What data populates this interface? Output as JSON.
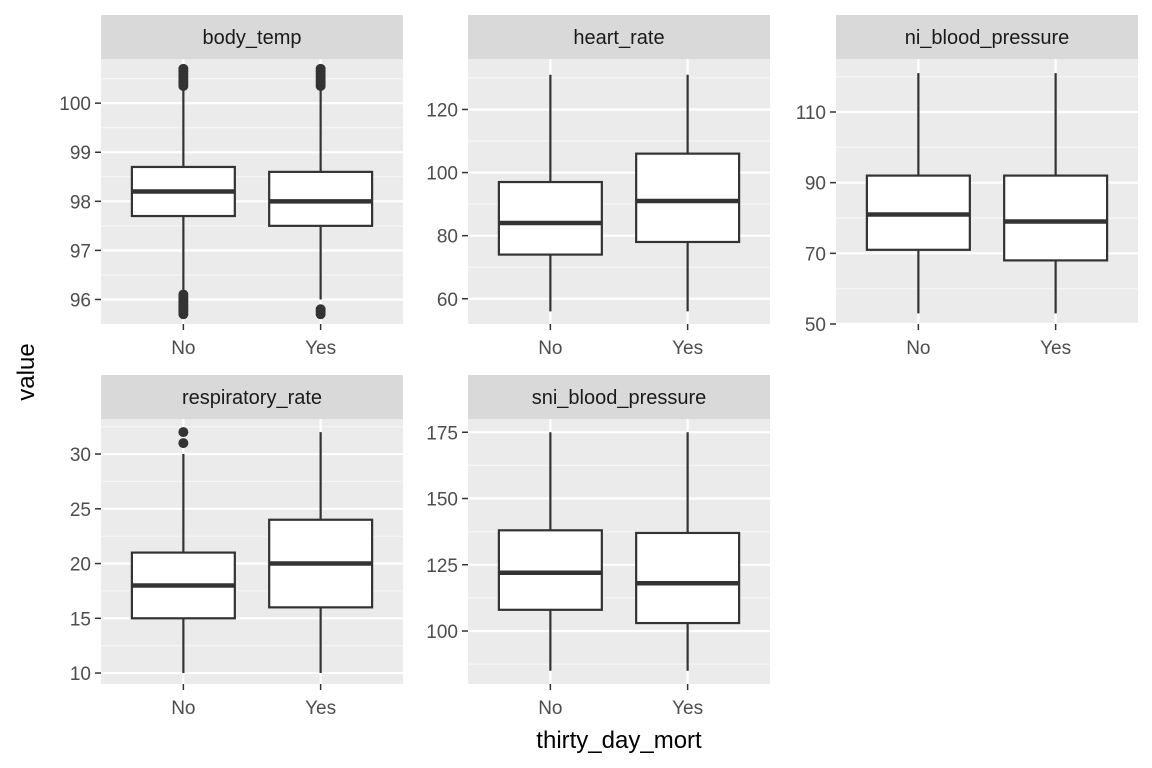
{
  "chart_data": {
    "type": "boxplot",
    "xlabel": "thirty_day_mort",
    "ylabel": "value",
    "categories": [
      "No",
      "Yes"
    ],
    "facets": [
      {
        "name": "body_temp",
        "ylim": [
          95.5,
          100.9
        ],
        "yticks": [
          96,
          97,
          98,
          99,
          100
        ],
        "boxes": [
          {
            "category": "No",
            "whisker_low": 96.2,
            "q1": 97.7,
            "median": 98.2,
            "q3": 98.7,
            "whisker_high": 100.3,
            "outliers": [
              95.7,
              95.75,
              95.8,
              95.85,
              95.9,
              95.95,
              96.0,
              96.05,
              96.1,
              100.35,
              100.4,
              100.45,
              100.5,
              100.55,
              100.6,
              100.65,
              100.7
            ]
          },
          {
            "category": "Yes",
            "whisker_low": 96.0,
            "q1": 97.5,
            "median": 98.0,
            "q3": 98.6,
            "whisker_high": 100.3,
            "outliers": [
              95.7,
              95.75,
              95.8,
              100.35,
              100.4,
              100.45,
              100.5,
              100.55,
              100.6,
              100.65,
              100.7
            ]
          }
        ]
      },
      {
        "name": "heart_rate",
        "ylim": [
          52,
          136
        ],
        "yticks": [
          60,
          80,
          100,
          120
        ],
        "boxes": [
          {
            "category": "No",
            "whisker_low": 56,
            "q1": 74,
            "median": 84,
            "q3": 97,
            "whisker_high": 131,
            "outliers": []
          },
          {
            "category": "Yes",
            "whisker_low": 56,
            "q1": 78,
            "median": 91,
            "q3": 106,
            "whisker_high": 131,
            "outliers": []
          }
        ]
      },
      {
        "name": "ni_blood_pressure",
        "ylim": [
          50,
          125
        ],
        "yticks": [
          50,
          70,
          90,
          110
        ],
        "boxes": [
          {
            "category": "No",
            "whisker_low": 53,
            "q1": 71,
            "median": 81,
            "q3": 92,
            "whisker_high": 121,
            "outliers": []
          },
          {
            "category": "Yes",
            "whisker_low": 53,
            "q1": 68,
            "median": 79,
            "q3": 92,
            "whisker_high": 121,
            "outliers": []
          }
        ]
      },
      {
        "name": "respiratory_rate",
        "ylim": [
          9,
          33.2
        ],
        "yticks": [
          10,
          15,
          20,
          25,
          30
        ],
        "boxes": [
          {
            "category": "No",
            "whisker_low": 10,
            "q1": 15,
            "median": 18,
            "q3": 21,
            "whisker_high": 30,
            "outliers": [
              31,
              32
            ]
          },
          {
            "category": "Yes",
            "whisker_low": 10,
            "q1": 16,
            "median": 20,
            "q3": 24,
            "whisker_high": 32,
            "outliers": []
          }
        ]
      },
      {
        "name": "sni_blood_pressure",
        "ylim": [
          80,
          180
        ],
        "yticks": [
          100,
          125,
          150,
          175
        ],
        "boxes": [
          {
            "category": "No",
            "whisker_low": 85,
            "q1": 108,
            "median": 122,
            "q3": 138,
            "whisker_high": 175,
            "outliers": []
          },
          {
            "category": "Yes",
            "whisker_low": 85,
            "q1": 103,
            "median": 118,
            "q3": 137,
            "whisker_high": 175,
            "outliers": []
          }
        ]
      }
    ],
    "colors": {
      "panel_bg": "#ebebeb",
      "strip_bg": "#d9d9d9",
      "grid_major": "#ffffff",
      "grid_minor": "#f5f5f5",
      "box_fill": "#ffffff",
      "box_line": "#333333",
      "tick_text": "#4d4d4d"
    },
    "grid": true,
    "legend": "none"
  }
}
